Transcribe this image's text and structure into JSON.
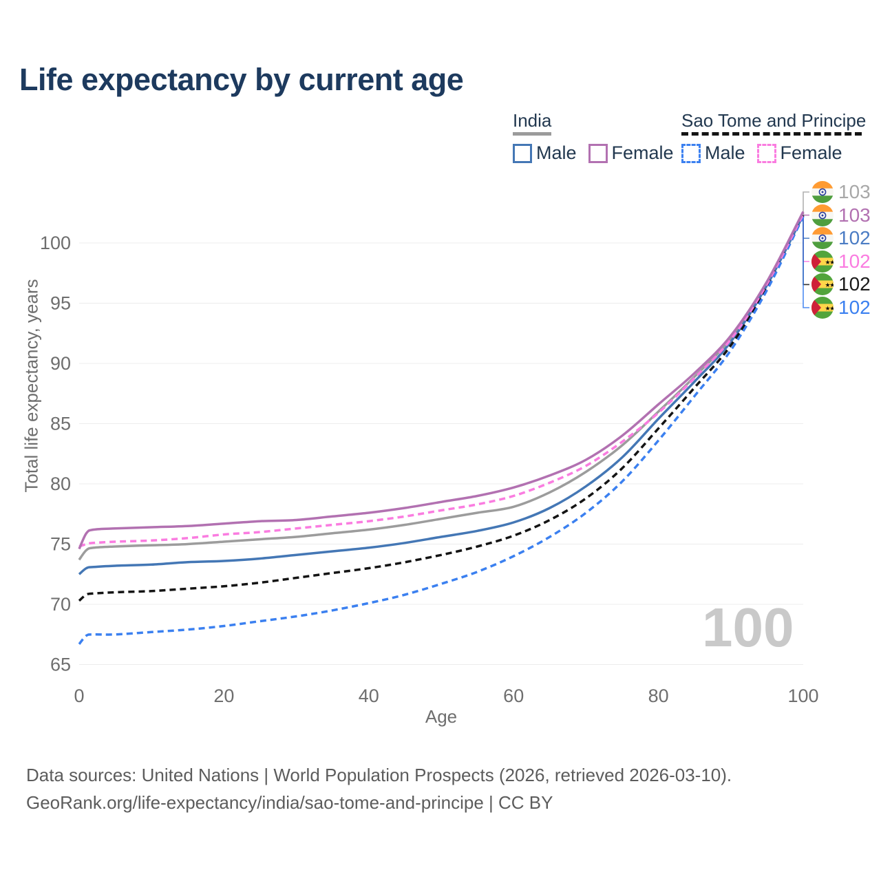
{
  "title": "Life expectancy by current age",
  "watermark": "100",
  "legend": {
    "groups": [
      {
        "name": "India",
        "line_style": "solid",
        "underline_color": "#9b9b9b",
        "items": [
          {
            "label": "Male",
            "color": "#4477b5",
            "dashed": false
          },
          {
            "label": "Female",
            "color": "#b271b1",
            "dashed": false
          }
        ]
      },
      {
        "name": "Sao Tome and Principe",
        "line_style": "dashed",
        "underline_color": "#141414",
        "items": [
          {
            "label": "Male",
            "color": "#3b80f0",
            "dashed": true
          },
          {
            "label": "Female",
            "color": "#fa7ce0",
            "dashed": true
          }
        ]
      }
    ]
  },
  "chart_data": {
    "type": "line",
    "title": "Life expectancy by current age",
    "xlabel": "Age",
    "ylabel": "Total life expectancy, years",
    "xlim": [
      0,
      100
    ],
    "ylim": [
      65,
      100
    ],
    "x_ticks": [
      0,
      20,
      40,
      60,
      80,
      100
    ],
    "y_ticks": [
      65,
      70,
      75,
      80,
      85,
      90,
      95,
      100
    ],
    "grid": "horizontal",
    "x": [
      0,
      1,
      2,
      5,
      10,
      15,
      20,
      25,
      30,
      35,
      40,
      45,
      50,
      55,
      60,
      65,
      70,
      75,
      80,
      85,
      90,
      95,
      100
    ],
    "series": [
      {
        "name": "India Both sexes",
        "country": "India",
        "color": "#9c9c9c",
        "dash": false,
        "values": [
          73.7,
          74.5,
          74.7,
          74.8,
          74.9,
          75.0,
          75.2,
          75.4,
          75.6,
          75.9,
          76.2,
          76.6,
          77.1,
          77.6,
          78.1,
          79.3,
          81.0,
          83.2,
          86.0,
          88.9,
          92.1,
          96.7,
          102.5
        ]
      },
      {
        "name": "India Male",
        "country": "India",
        "color": "#4477b5",
        "dash": false,
        "values": [
          72.5,
          73.0,
          73.1,
          73.2,
          73.3,
          73.5,
          73.6,
          73.8,
          74.1,
          74.4,
          74.7,
          75.1,
          75.6,
          76.1,
          76.8,
          78.0,
          79.8,
          82.2,
          85.4,
          88.5,
          91.8,
          96.5,
          102.3
        ]
      },
      {
        "name": "Sao Tome and Principe Both sexes",
        "country": "Sao Tome and Principe",
        "color": "#141414",
        "dash": true,
        "values": [
          70.3,
          70.8,
          70.9,
          71.0,
          71.1,
          71.3,
          71.5,
          71.8,
          72.2,
          72.6,
          73.0,
          73.5,
          74.1,
          74.8,
          75.7,
          77.0,
          78.8,
          81.3,
          84.6,
          88.0,
          91.5,
          96.3,
          102.3
        ]
      },
      {
        "name": "Sao Tome and Principe Male",
        "country": "Sao Tome and Principe",
        "color": "#3b80f0",
        "dash": true,
        "values": [
          66.7,
          67.4,
          67.5,
          67.5,
          67.7,
          67.9,
          68.2,
          68.6,
          69.0,
          69.5,
          70.1,
          70.8,
          71.7,
          72.7,
          74.0,
          75.6,
          77.6,
          80.2,
          83.6,
          87.3,
          91.1,
          96.1,
          102.2
        ]
      },
      {
        "name": "Sao Tome and Principe Female",
        "country": "Sao Tome and Principe",
        "color": "#fa7ce0",
        "dash": true,
        "values": [
          74.8,
          75.0,
          75.1,
          75.2,
          75.3,
          75.5,
          75.8,
          76.0,
          76.3,
          76.6,
          76.9,
          77.3,
          77.8,
          78.3,
          79.0,
          80.1,
          81.5,
          83.5,
          85.9,
          88.8,
          92.0,
          96.6,
          102.4
        ]
      },
      {
        "name": "India Female",
        "country": "India",
        "color": "#b271b1",
        "dash": false,
        "values": [
          74.6,
          75.9,
          76.2,
          76.3,
          76.4,
          76.5,
          76.7,
          76.9,
          77.0,
          77.3,
          77.6,
          78.0,
          78.5,
          79.0,
          79.7,
          80.7,
          82.0,
          84.0,
          86.6,
          89.2,
          92.3,
          96.8,
          102.6
        ]
      }
    ],
    "end_labels": [
      {
        "value": "103",
        "color": "#a8a8a8",
        "flag": "india",
        "series": "India Both sexes"
      },
      {
        "value": "103",
        "color": "#b271b1",
        "flag": "india",
        "series": "India Female"
      },
      {
        "value": "102",
        "color": "#4b7cc4",
        "flag": "india",
        "series": "India Male"
      },
      {
        "value": "102",
        "color": "#fa7ce0",
        "flag": "sao-tome",
        "series": "Sao Tome and Principe Female"
      },
      {
        "value": "102",
        "color": "#1a1a1a",
        "flag": "sao-tome",
        "series": "Sao Tome and Principe Both sexes"
      },
      {
        "value": "102",
        "color": "#3b80f0",
        "flag": "sao-tome",
        "series": "Sao Tome and Principe Male"
      }
    ]
  },
  "footer": {
    "line1": "Data sources: United Nations | World Population Prospects (2026, retrieved 2026-03-10).",
    "line2": "GeoRank.org/life-expectancy/india/sao-tome-and-principe | CC BY"
  }
}
